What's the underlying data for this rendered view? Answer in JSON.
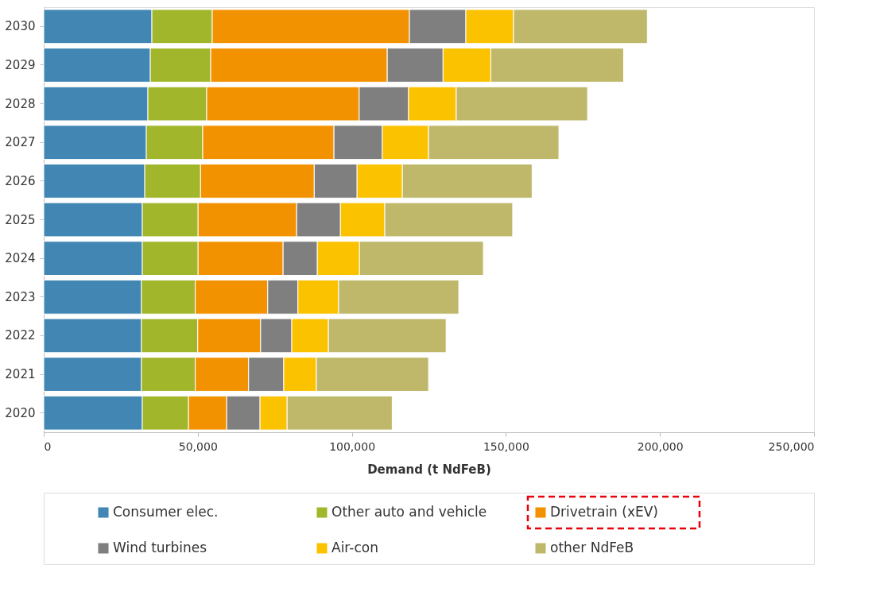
{
  "chart_data": {
    "type": "bar",
    "orientation": "horizontal",
    "stacked": true,
    "xlabel": "Demand (t NdFeB)",
    "categories": [
      "2030",
      "2029",
      "2028",
      "2027",
      "2026",
      "2025",
      "2024",
      "2023",
      "2022",
      "2021",
      "2020"
    ],
    "series": [
      {
        "name": "Consumer elec.",
        "color": "#4286b4",
        "values": [
          35100,
          34600,
          33800,
          33300,
          32800,
          32000,
          32000,
          31700,
          31700,
          31700,
          32000
        ]
      },
      {
        "name": "Other auto and vehicle",
        "color": "#a2b62b",
        "values": [
          19600,
          19600,
          19100,
          18300,
          18100,
          18100,
          18100,
          17500,
          18300,
          17500,
          15000
        ]
      },
      {
        "name": "Drivetrain (xEV)",
        "color": "#f39200",
        "values": [
          64000,
          57300,
          49500,
          42600,
          36900,
          32000,
          27600,
          23500,
          20400,
          17300,
          12400
        ]
      },
      {
        "name": "Wind turbines",
        "color": "#7f7f7f",
        "values": [
          18300,
          18100,
          16000,
          15700,
          13900,
          14200,
          11100,
          9800,
          10100,
          11400,
          10800
        ]
      },
      {
        "name": "Air-con",
        "color": "#fbc200",
        "values": [
          15500,
          15500,
          15500,
          15000,
          14700,
          14400,
          13700,
          13200,
          11900,
          10600,
          8800
        ]
      },
      {
        "name": "other NdFeB",
        "color": "#bfb86b",
        "values": [
          43400,
          43100,
          42600,
          42300,
          42100,
          41500,
          40200,
          39000,
          38200,
          36400,
          34100
        ]
      }
    ],
    "xlim": [
      0,
      250000
    ],
    "xticks": [
      {
        "value": 0,
        "label": "0"
      },
      {
        "value": 50000,
        "label": "50,000"
      },
      {
        "value": 100000,
        "label": "100,000"
      },
      {
        "value": 150000,
        "label": "150,000"
      },
      {
        "value": 200000,
        "label": "200,000"
      },
      {
        "value": 250000,
        "label": "250,000"
      }
    ],
    "grid": false,
    "legend": "bottom"
  }
}
